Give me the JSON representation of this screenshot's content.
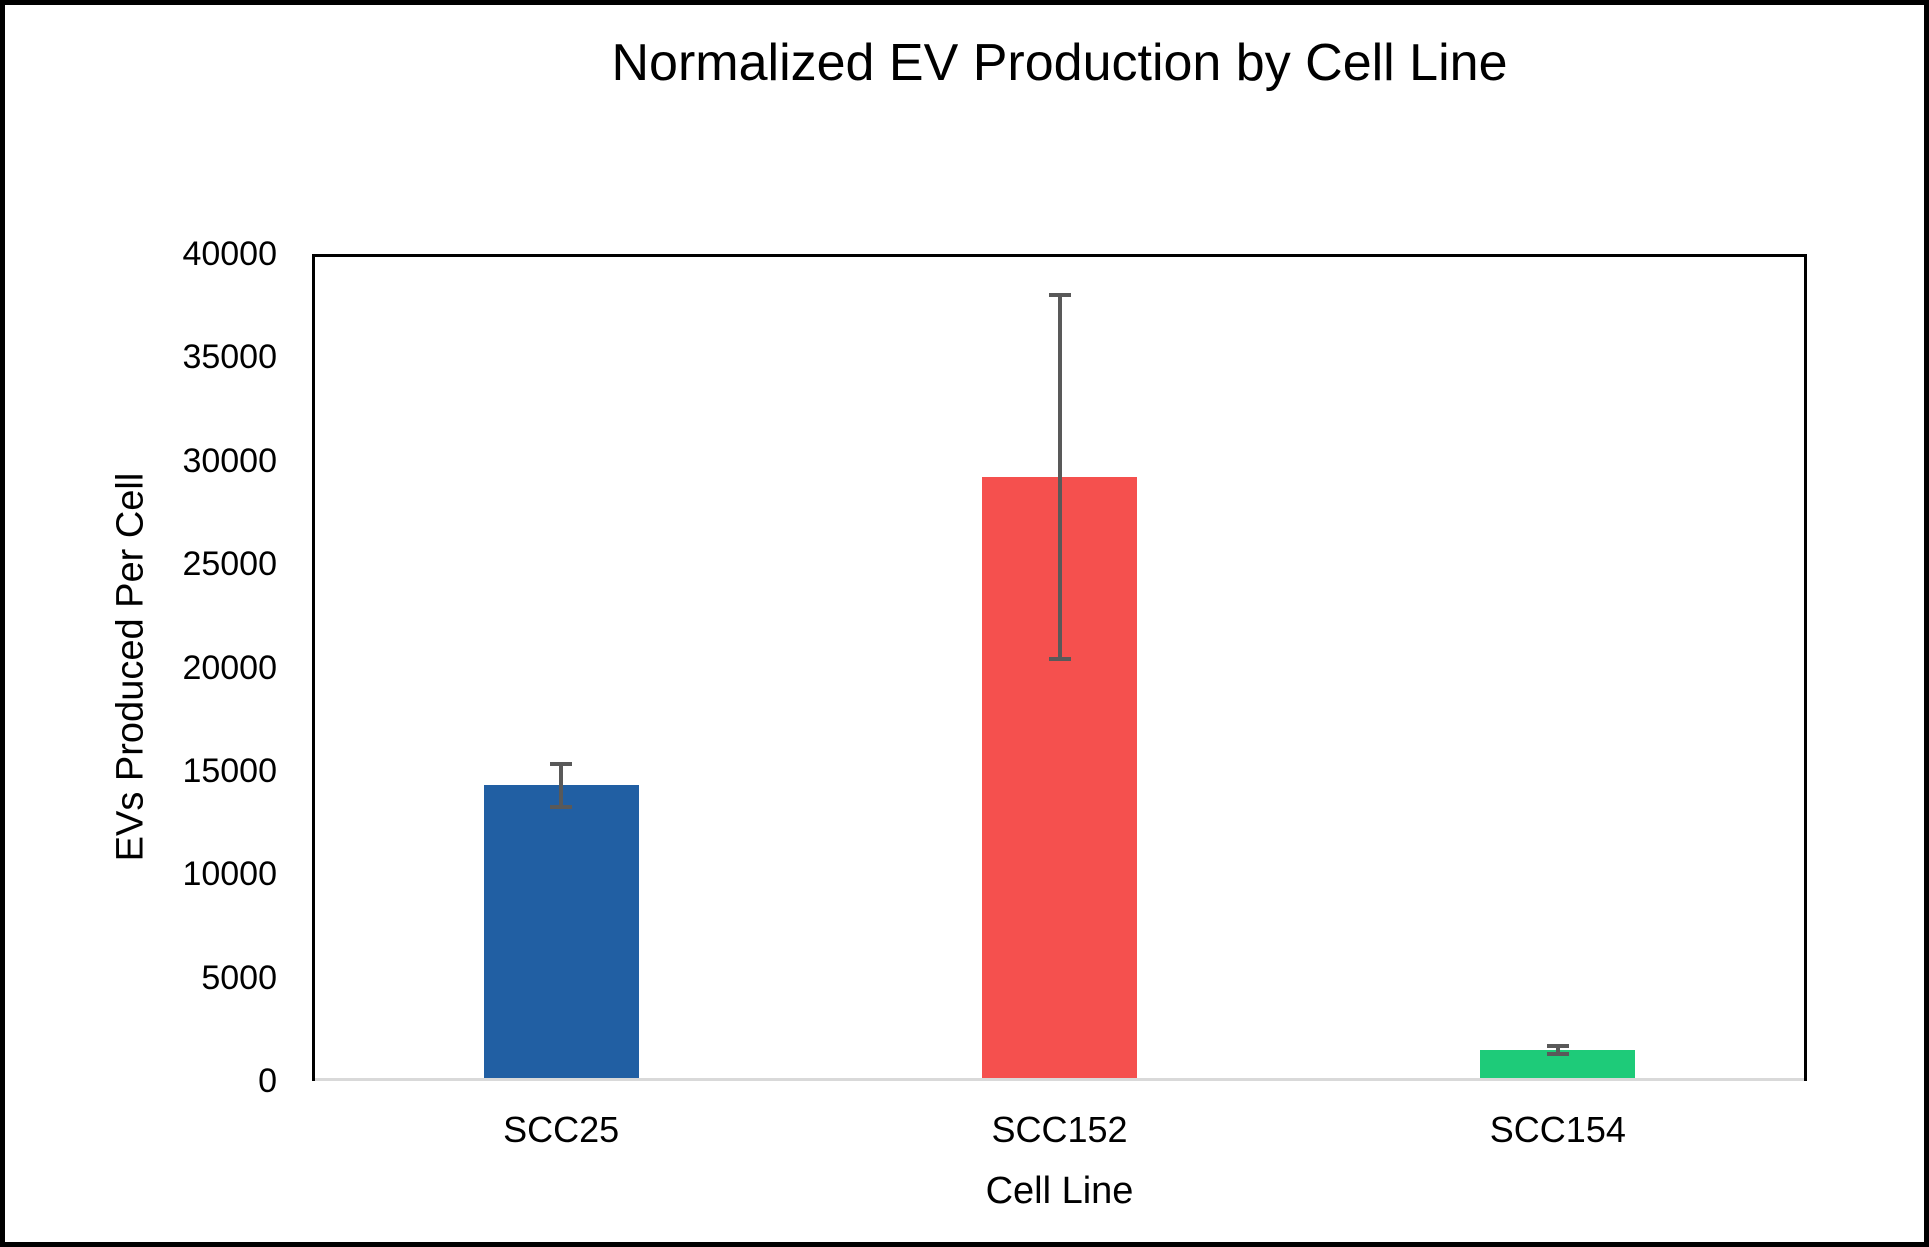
{
  "chart_data": {
    "type": "bar",
    "title": "Normalized EV Production by Cell Line",
    "xlabel": "Cell Line",
    "ylabel": "EVs Produced Per Cell",
    "categories": [
      "SCC25",
      "SCC152",
      "SCC154"
    ],
    "values": [
      14300,
      29200,
      1500
    ],
    "error_bars": [
      1150,
      8900,
      300
    ],
    "bar_colors": [
      "#215FA3",
      "#F5504E",
      "#1ECB79"
    ],
    "error_bar_color": "#595959",
    "axis_line_color": "#000000",
    "zero_line_color": "#D9D9D9",
    "ylim": [
      0,
      40000
    ],
    "yticks": [
      40000,
      35000,
      30000,
      25000,
      20000,
      15000,
      10000,
      5000,
      0
    ],
    "grid": false,
    "legend": false
  }
}
